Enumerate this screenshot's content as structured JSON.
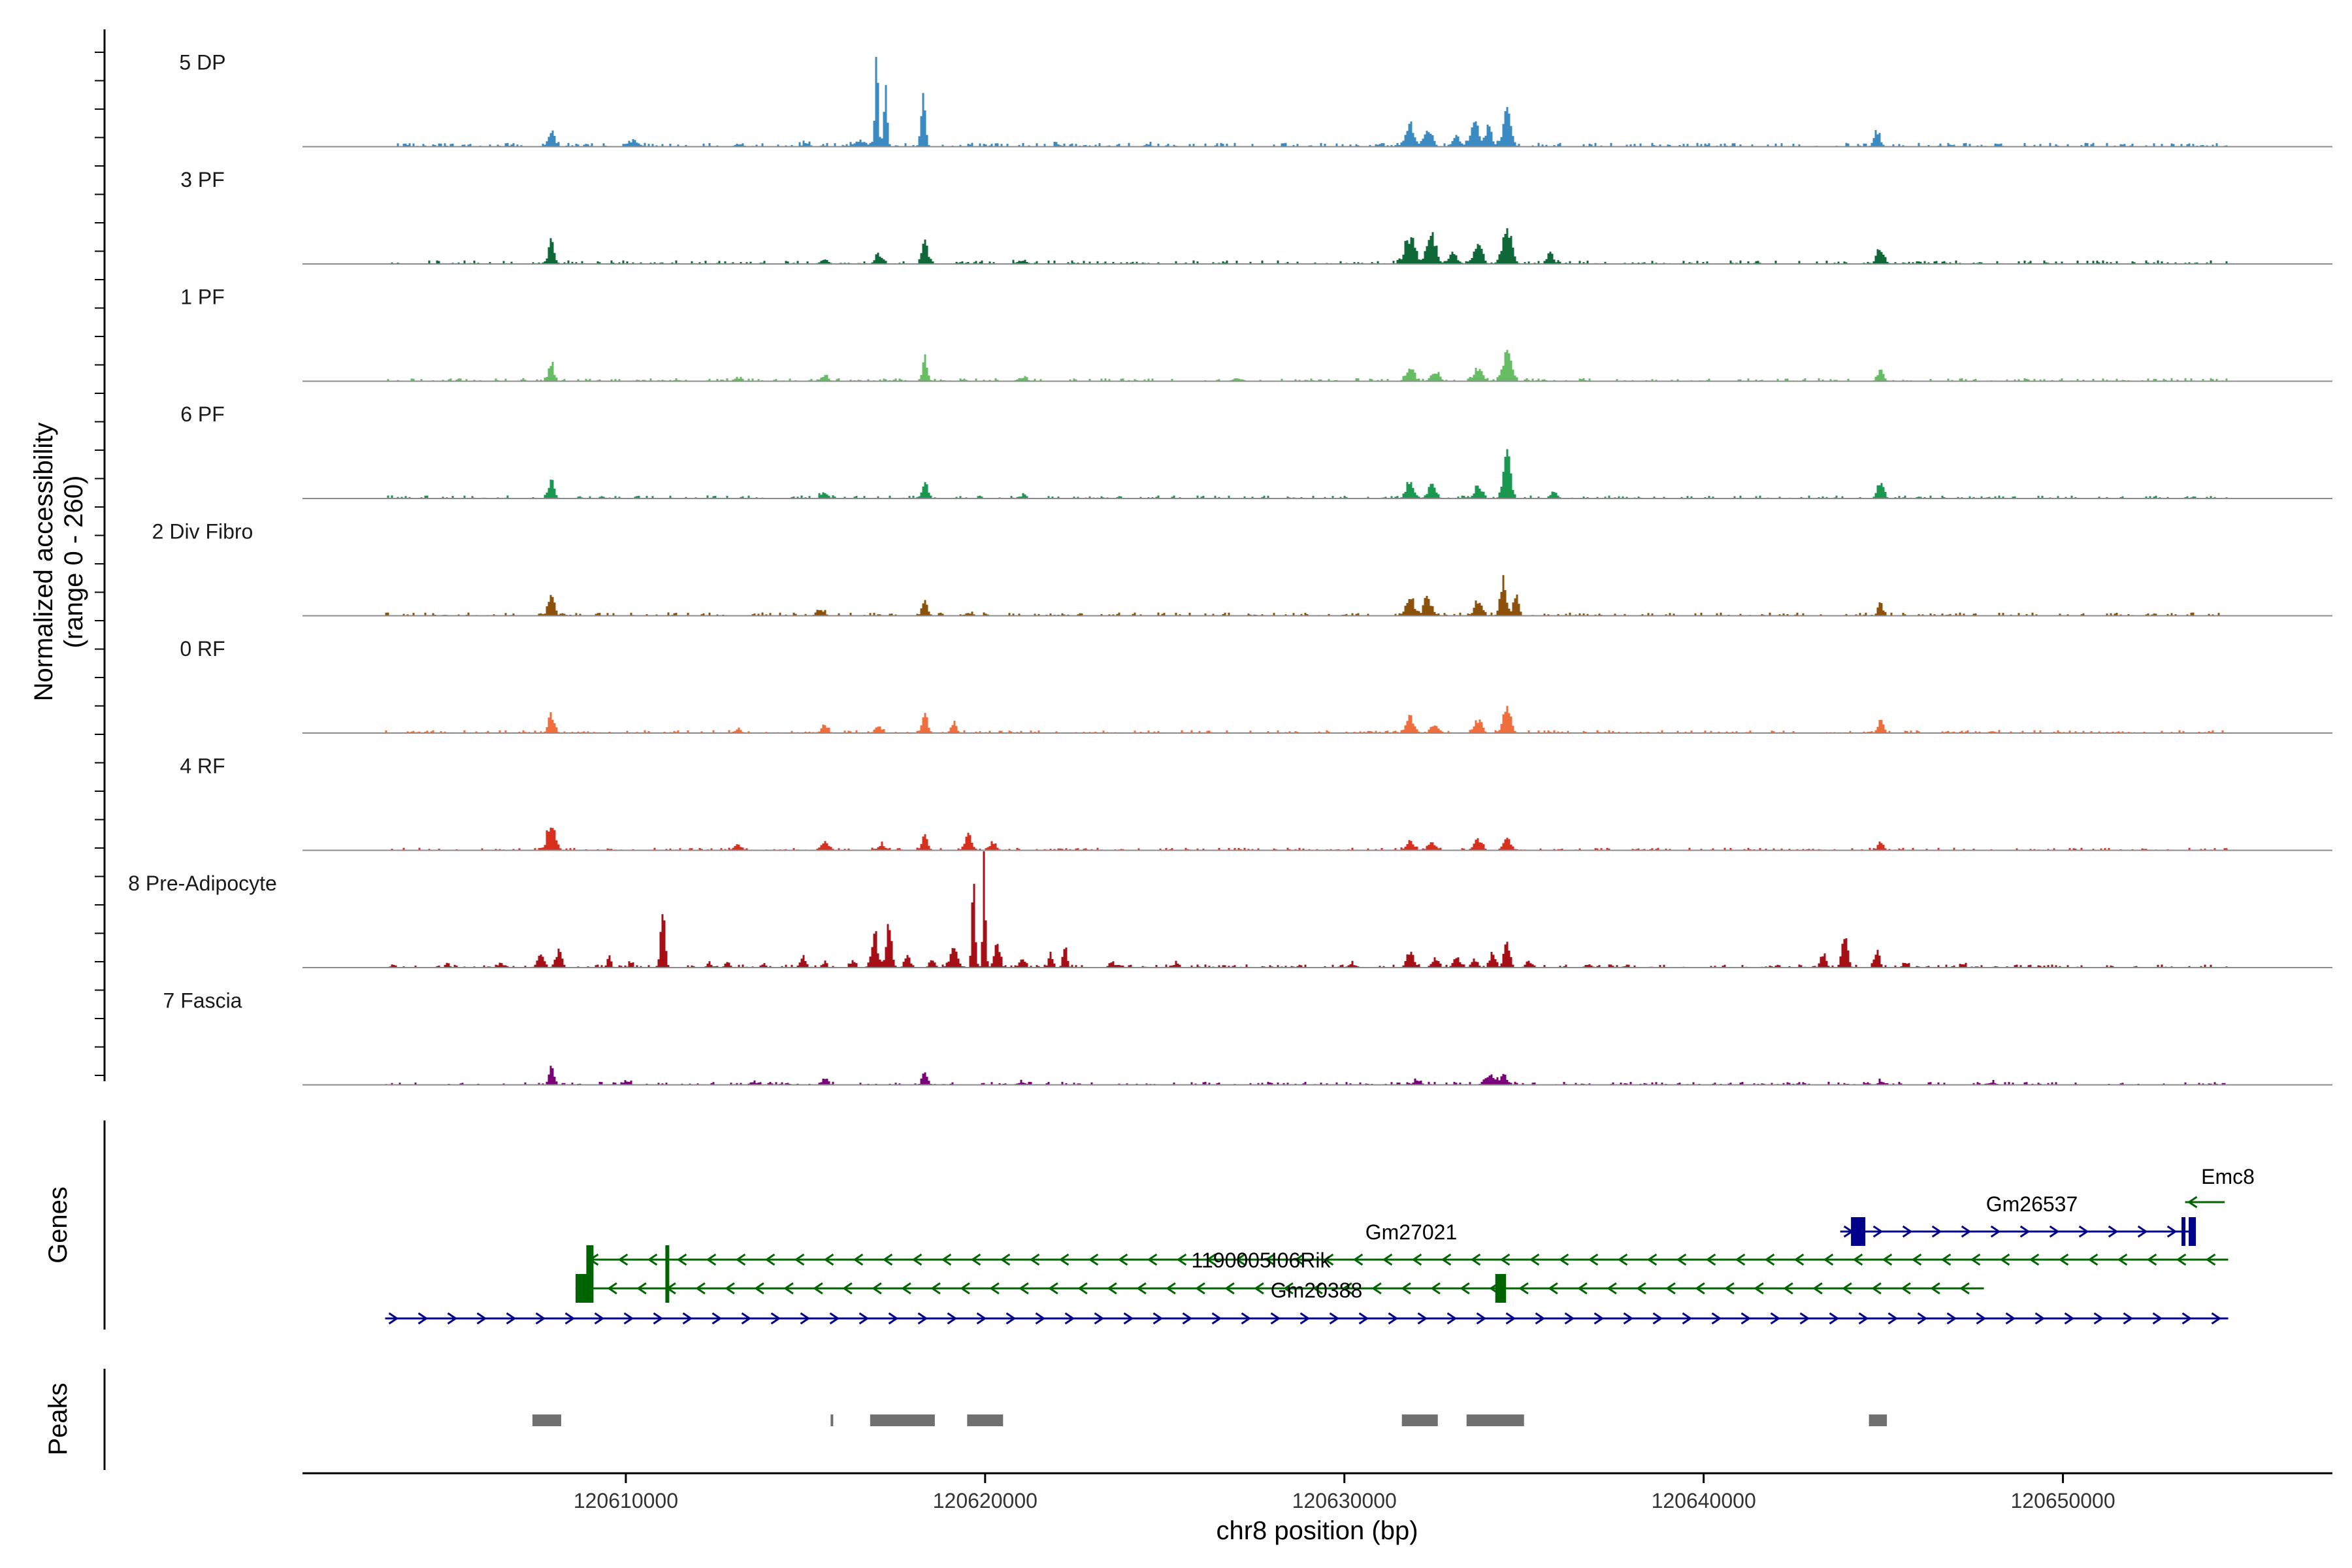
{
  "chart_data": {
    "type": "genome_coverage_track",
    "y_axis_title_line1": "Normalized accessibility",
    "y_axis_title_line2": "(range 0 - 260)",
    "y_range": [
      0,
      260
    ],
    "x_axis_title": "chr8 position (bp)",
    "x_range": [
      120601000,
      120657500
    ],
    "x_ticks": [
      {
        "value": 120610000,
        "label": "120610000"
      },
      {
        "value": 120620000,
        "label": "120620000"
      },
      {
        "value": 120630000,
        "label": "120630000"
      },
      {
        "value": 120640000,
        "label": "120640000"
      },
      {
        "value": 120650000,
        "label": "120650000"
      }
    ],
    "tracks": [
      {
        "name": "5 DP",
        "color": "#3b8bc2",
        "baseline": 15,
        "peaks": [
          [
            120607900,
            40,
            120
          ],
          [
            120610200,
            10,
            200
          ],
          [
            120613100,
            6,
            140
          ],
          [
            120615000,
            7,
            160
          ],
          [
            120616500,
            12,
            250
          ],
          [
            120616950,
            185,
            70
          ],
          [
            120617200,
            140,
            70
          ],
          [
            120618250,
            105,
            90
          ],
          [
            120622000,
            5,
            150
          ],
          [
            120624500,
            5,
            160
          ],
          [
            120631800,
            45,
            160
          ],
          [
            120632300,
            35,
            160
          ],
          [
            120633100,
            25,
            140
          ],
          [
            120633600,
            60,
            150
          ],
          [
            120634000,
            45,
            120
          ],
          [
            120634500,
            80,
            150
          ],
          [
            120644800,
            38,
            120
          ]
        ]
      },
      {
        "name": "3 PF",
        "color": "#0e6837",
        "baseline": 14,
        "peaks": [
          [
            120607900,
            50,
            120
          ],
          [
            120615500,
            10,
            160
          ],
          [
            120617000,
            25,
            130
          ],
          [
            120618300,
            55,
            100
          ],
          [
            120621000,
            8,
            180
          ],
          [
            120631800,
            60,
            200
          ],
          [
            120632400,
            75,
            160
          ],
          [
            120633000,
            25,
            160
          ],
          [
            120633700,
            50,
            150
          ],
          [
            120634500,
            80,
            180
          ],
          [
            120635700,
            25,
            130
          ],
          [
            120644900,
            38,
            140
          ]
        ]
      },
      {
        "name": "1 PF",
        "color": "#66bd63",
        "baseline": 12,
        "peaks": [
          [
            120607900,
            45,
            100
          ],
          [
            120613100,
            8,
            140
          ],
          [
            120615500,
            14,
            140
          ],
          [
            120618300,
            55,
            100
          ],
          [
            120621000,
            7,
            180
          ],
          [
            120627000,
            6,
            200
          ],
          [
            120631800,
            30,
            160
          ],
          [
            120632500,
            22,
            160
          ],
          [
            120633700,
            30,
            170
          ],
          [
            120634500,
            60,
            170
          ],
          [
            120644900,
            28,
            120
          ]
        ]
      },
      {
        "name": "6 PF",
        "color": "#1a9850",
        "baseline": 12,
        "peaks": [
          [
            120607900,
            45,
            110
          ],
          [
            120615500,
            14,
            140
          ],
          [
            120618300,
            38,
            100
          ],
          [
            120621000,
            6,
            160
          ],
          [
            120631800,
            36,
            160
          ],
          [
            120632400,
            30,
            150
          ],
          [
            120633700,
            30,
            150
          ],
          [
            120634500,
            95,
            140
          ],
          [
            120635800,
            15,
            130
          ],
          [
            120644900,
            42,
            120
          ]
        ]
      },
      {
        "name": "2 Div Fibro",
        "color": "#8c510a",
        "baseline": 13,
        "peaks": [
          [
            120607900,
            58,
            120
          ],
          [
            120615400,
            12,
            140
          ],
          [
            120618300,
            42,
            100
          ],
          [
            120619500,
            6,
            150
          ],
          [
            120631800,
            45,
            160
          ],
          [
            120632300,
            40,
            150
          ],
          [
            120633700,
            35,
            150
          ],
          [
            120634400,
            80,
            120
          ],
          [
            120634750,
            50,
            100
          ],
          [
            120644900,
            25,
            110
          ]
        ]
      },
      {
        "name": "0 RF",
        "color": "#ef6e3d",
        "baseline": 11,
        "peaks": [
          [
            120607900,
            45,
            110
          ],
          [
            120613100,
            8,
            140
          ],
          [
            120615500,
            14,
            140
          ],
          [
            120617000,
            12,
            140
          ],
          [
            120618300,
            60,
            90
          ],
          [
            120619100,
            25,
            110
          ],
          [
            120631800,
            35,
            160
          ],
          [
            120632500,
            20,
            150
          ],
          [
            120633700,
            28,
            150
          ],
          [
            120634500,
            65,
            140
          ],
          [
            120644900,
            28,
            110
          ],
          [
            120648000,
            5,
            140
          ]
        ]
      },
      {
        "name": "4 RF",
        "color": "#d7301f",
        "baseline": 10,
        "peaks": [
          [
            120607900,
            70,
            150
          ],
          [
            120613100,
            12,
            150
          ],
          [
            120615500,
            20,
            150
          ],
          [
            120617100,
            12,
            150
          ],
          [
            120618300,
            38,
            110
          ],
          [
            120619500,
            35,
            130
          ],
          [
            120620200,
            20,
            120
          ],
          [
            120631800,
            22,
            160
          ],
          [
            120632400,
            16,
            150
          ],
          [
            120633700,
            25,
            150
          ],
          [
            120634500,
            30,
            150
          ],
          [
            120644900,
            20,
            110
          ]
        ]
      },
      {
        "name": "8 Pre-Adipocyte",
        "color": "#a50f15",
        "baseline": 12,
        "peaks": [
          [
            120602800,
            18,
            70
          ],
          [
            120603500,
            8,
            90
          ],
          [
            120605000,
            12,
            80
          ],
          [
            120606500,
            12,
            90
          ],
          [
            120607600,
            30,
            130
          ],
          [
            120608100,
            40,
            120
          ],
          [
            120609500,
            20,
            80
          ],
          [
            120610100,
            10,
            80
          ],
          [
            120611000,
            125,
            90
          ],
          [
            120612300,
            12,
            90
          ],
          [
            120612800,
            15,
            90
          ],
          [
            120613800,
            10,
            90
          ],
          [
            120614900,
            25,
            110
          ],
          [
            120615500,
            12,
            90
          ],
          [
            120616300,
            15,
            100
          ],
          [
            120616900,
            70,
            130
          ],
          [
            120617300,
            90,
            110
          ],
          [
            120617800,
            30,
            100
          ],
          [
            120618500,
            20,
            100
          ],
          [
            120619100,
            40,
            150
          ],
          [
            120619650,
            270,
            60
          ],
          [
            120619950,
            230,
            60
          ],
          [
            120620300,
            60,
            110
          ],
          [
            120621000,
            25,
            100
          ],
          [
            120621800,
            30,
            90
          ],
          [
            120622200,
            45,
            80
          ],
          [
            120623500,
            15,
            100
          ],
          [
            120625300,
            10,
            100
          ],
          [
            120630200,
            8,
            150
          ],
          [
            120631800,
            35,
            140
          ],
          [
            120632500,
            22,
            130
          ],
          [
            120633100,
            25,
            130
          ],
          [
            120633600,
            20,
            120
          ],
          [
            120634100,
            35,
            100
          ],
          [
            120634500,
            55,
            120
          ],
          [
            120635100,
            18,
            110
          ],
          [
            120636800,
            8,
            90
          ],
          [
            120643300,
            30,
            110
          ],
          [
            120643900,
            70,
            110
          ],
          [
            120644800,
            38,
            100
          ],
          [
            120645600,
            12,
            90
          ],
          [
            120647200,
            8,
            90
          ]
        ]
      },
      {
        "name": "7 Fascia",
        "color": "#7a0177",
        "baseline": 12,
        "peaks": [
          [
            120607900,
            38,
            100
          ],
          [
            120610000,
            8,
            150
          ],
          [
            120613500,
            6,
            150
          ],
          [
            120615500,
            10,
            150
          ],
          [
            120618300,
            35,
            100
          ],
          [
            120621000,
            6,
            160
          ],
          [
            120632000,
            8,
            160
          ],
          [
            120634000,
            25,
            170
          ],
          [
            120634400,
            22,
            150
          ],
          [
            120644900,
            8,
            120
          ],
          [
            120648000,
            5,
            160
          ]
        ]
      }
    ],
    "genes_title": "Genes",
    "genes": [
      {
        "name": "Emc8",
        "label": "Emc8",
        "strand": "-",
        "color": "#006400",
        "start": 120653400,
        "end": 120654500,
        "exons": []
      },
      {
        "name": "Gm26537",
        "label": "Gm26537",
        "strand": "+",
        "color": "#00008b",
        "start": 120643800,
        "end": 120653600,
        "exons": [
          [
            120644100,
            120644500
          ],
          [
            120653300,
            120653400
          ],
          [
            120653500,
            120653700
          ]
        ]
      },
      {
        "name": "Gm27021",
        "label": "Gm27021",
        "strand": "-",
        "color": "#006400",
        "start": 120608900,
        "end": 120654600,
        "exons": [
          [
            120608900,
            120609100
          ],
          [
            120611100,
            120611200
          ]
        ]
      },
      {
        "name": "1190005I06Rik",
        "label": "1190005I06Rik",
        "strand": "-",
        "color": "#006400",
        "start": 120608600,
        "end": 120647800,
        "exons": [
          [
            120608600,
            120609100
          ],
          [
            120611100,
            120611200
          ],
          [
            120634200,
            120634500
          ]
        ]
      },
      {
        "name": "Gm20388",
        "label": "Gm20388",
        "strand": "+",
        "color": "#00008b",
        "start": 120603300,
        "end": 120654600,
        "exons": []
      }
    ],
    "peaks_title": "Peaks",
    "peak_regions": [
      [
        120607400,
        120608200
      ],
      [
        120615700,
        120615750
      ],
      [
        120616800,
        120618600
      ],
      [
        120619500,
        120620500
      ],
      [
        120631600,
        120632600
      ],
      [
        120633400,
        120635000
      ],
      [
        120644600,
        120645100
      ]
    ]
  }
}
